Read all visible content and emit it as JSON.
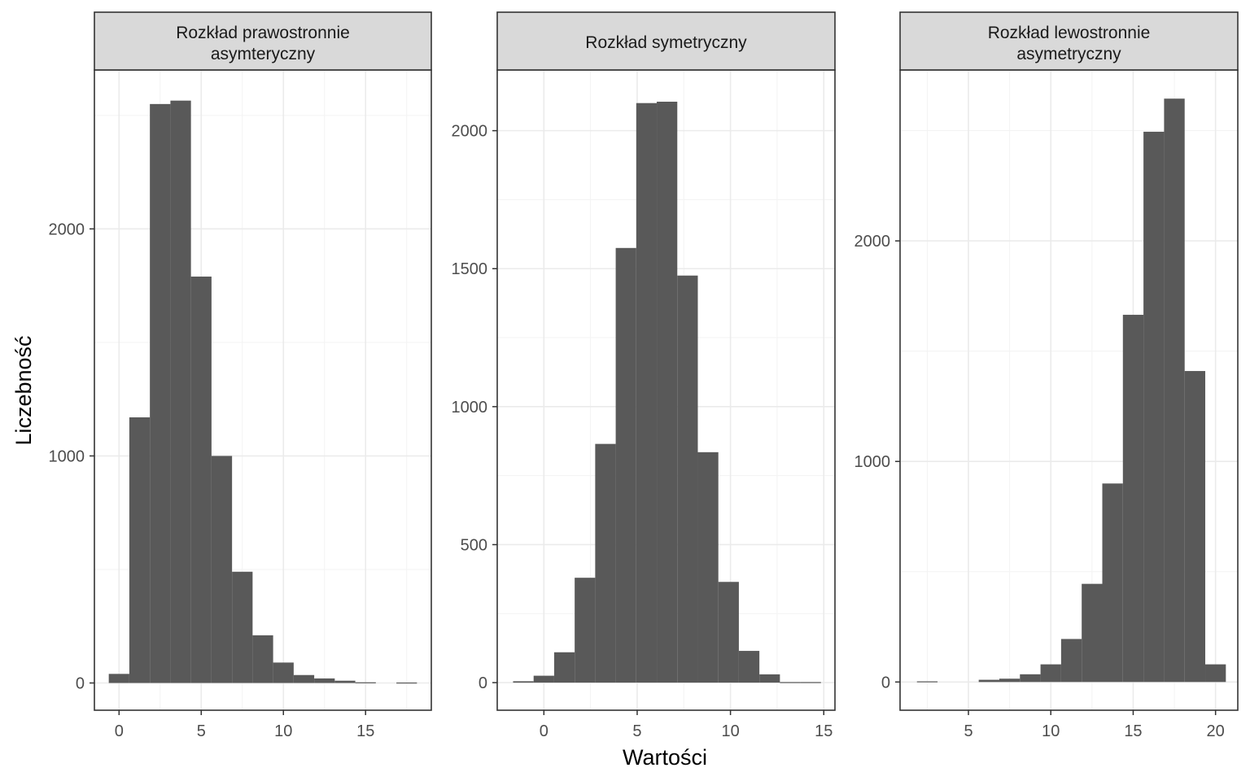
{
  "figure": {
    "xlabel": "Wartości",
    "ylabel": "Liczebność"
  },
  "colors": {
    "bar": "#595959",
    "strip_fill": "#d9d9d9",
    "panel_border": "#333333",
    "grid_major": "#ebebeb",
    "grid_minor": "#f3f3f3",
    "tick_text": "#4d4d4d"
  },
  "chart_data": [
    {
      "type": "bar",
      "title": "Rozkład prawostronnie asymteryczny",
      "title_lines": [
        "Rozkład prawostronnie",
        "asymteryczny"
      ],
      "bin_width": 1.25,
      "xlim": [
        -1.5,
        19
      ],
      "ylim": [
        -120,
        2700
      ],
      "x_ticks": [
        0,
        5,
        10,
        15
      ],
      "x_tick_labels": [
        "0",
        "5",
        "10",
        "15"
      ],
      "y_ticks": [
        0,
        1000,
        2000
      ],
      "y_tick_labels": [
        "0",
        "1000",
        "2000"
      ],
      "bins": [
        {
          "x": 0.0,
          "count": 40
        },
        {
          "x": 1.25,
          "count": 1170
        },
        {
          "x": 2.5,
          "count": 2550
        },
        {
          "x": 3.75,
          "count": 2565
        },
        {
          "x": 5.0,
          "count": 1790
        },
        {
          "x": 6.25,
          "count": 1000
        },
        {
          "x": 7.5,
          "count": 490
        },
        {
          "x": 8.75,
          "count": 210
        },
        {
          "x": 10.0,
          "count": 90
        },
        {
          "x": 11.25,
          "count": 35
        },
        {
          "x": 12.5,
          "count": 20
        },
        {
          "x": 13.75,
          "count": 10
        },
        {
          "x": 15.0,
          "count": 3
        },
        {
          "x": 16.25,
          "count": 0
        },
        {
          "x": 17.5,
          "count": 2
        }
      ]
    },
    {
      "type": "bar",
      "title": "Rozkład symetryczny",
      "title_lines": [
        "Rozkład symetryczny"
      ],
      "bin_width": 1.1,
      "xlim": [
        -2.5,
        15.6
      ],
      "ylim": [
        -100,
        2220
      ],
      "x_ticks": [
        0,
        5,
        10,
        15
      ],
      "x_tick_labels": [
        "0",
        "5",
        "10",
        "15"
      ],
      "y_ticks": [
        0,
        500,
        1000,
        1500,
        2000
      ],
      "y_tick_labels": [
        "0",
        "500",
        "1000",
        "1500",
        "2000"
      ],
      "bins": [
        {
          "x": -1.1,
          "count": 5
        },
        {
          "x": 0.0,
          "count": 25
        },
        {
          "x": 1.1,
          "count": 110
        },
        {
          "x": 2.2,
          "count": 380
        },
        {
          "x": 3.3,
          "count": 865
        },
        {
          "x": 4.4,
          "count": 1575
        },
        {
          "x": 5.5,
          "count": 2100
        },
        {
          "x": 6.6,
          "count": 2105
        },
        {
          "x": 7.7,
          "count": 1475
        },
        {
          "x": 8.8,
          "count": 835
        },
        {
          "x": 9.9,
          "count": 365
        },
        {
          "x": 11.0,
          "count": 115
        },
        {
          "x": 12.1,
          "count": 30
        },
        {
          "x": 13.2,
          "count": 2
        },
        {
          "x": 14.3,
          "count": 2
        }
      ]
    },
    {
      "type": "bar",
      "title": "Rozkład lewostronnie asymetryczny",
      "title_lines": [
        "Rozkład lewostronnie",
        "asymetryczny"
      ],
      "bin_width": 1.25,
      "xlim": [
        0.85,
        21.35
      ],
      "ylim": [
        -128,
        2775
      ],
      "x_ticks": [
        5,
        10,
        15,
        20
      ],
      "x_tick_labels": [
        "5",
        "10",
        "15",
        "20"
      ],
      "y_ticks": [
        0,
        1000,
        2000
      ],
      "y_tick_labels": [
        "0",
        "1000",
        "2000"
      ],
      "bins": [
        {
          "x": 2.5,
          "count": 3
        },
        {
          "x": 3.75,
          "count": 0
        },
        {
          "x": 5.0,
          "count": 0
        },
        {
          "x": 6.25,
          "count": 10
        },
        {
          "x": 7.5,
          "count": 15
        },
        {
          "x": 8.75,
          "count": 35
        },
        {
          "x": 10.0,
          "count": 80
        },
        {
          "x": 11.25,
          "count": 195
        },
        {
          "x": 12.5,
          "count": 445
        },
        {
          "x": 13.75,
          "count": 900
        },
        {
          "x": 15.0,
          "count": 1665
        },
        {
          "x": 16.25,
          "count": 2495
        },
        {
          "x": 17.5,
          "count": 2645
        },
        {
          "x": 18.75,
          "count": 1410
        },
        {
          "x": 20.0,
          "count": 80
        }
      ]
    }
  ]
}
